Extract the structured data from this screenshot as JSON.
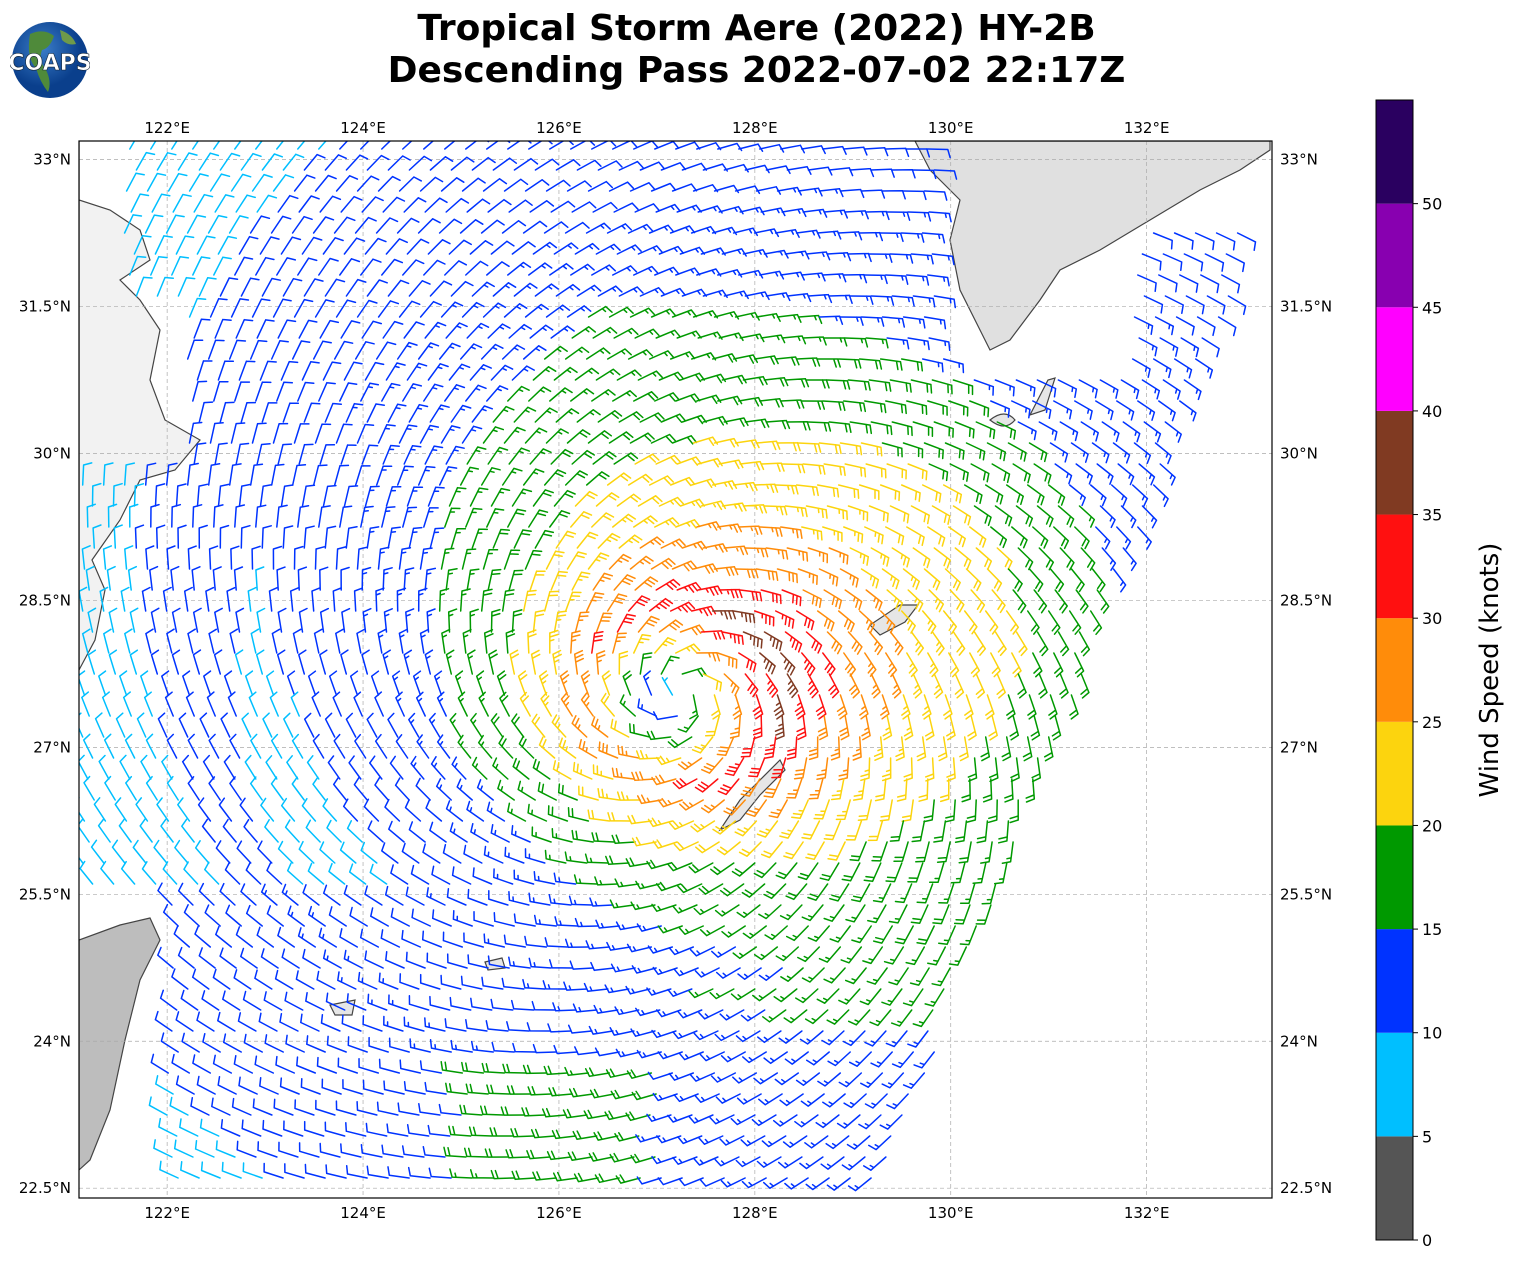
{
  "title": {
    "line1": "Tropical Storm Aere (2022) HY-2B",
    "line2": "Descending Pass 2022-07-02 22:17Z"
  },
  "logo": {
    "text": "COAPS"
  },
  "map": {
    "lon_ticks": [
      {
        "value": 122,
        "label": "122°E"
      },
      {
        "value": 124,
        "label": "124°E"
      },
      {
        "value": 126,
        "label": "126°E"
      },
      {
        "value": 128,
        "label": "128°E"
      },
      {
        "value": 130,
        "label": "130°E"
      },
      {
        "value": 132,
        "label": "132°E"
      }
    ],
    "lat_ticks": [
      {
        "value": 33,
        "label": "33°N"
      },
      {
        "value": 31.5,
        "label": "31.5°N"
      },
      {
        "value": 30,
        "label": "30°N"
      },
      {
        "value": 28.5,
        "label": "28.5°N"
      },
      {
        "value": 27,
        "label": "27°N"
      },
      {
        "value": 25.5,
        "label": "25.5°N"
      },
      {
        "value": 24,
        "label": "24°N"
      },
      {
        "value": 22.5,
        "label": "22.5°N"
      }
    ],
    "extent": {
      "lon_min": 121.1,
      "lon_max": 133.28,
      "lat_min": 22.4,
      "lat_max": 33.19
    },
    "storm": {
      "center_lon": 127.25,
      "center_lat": 27.55,
      "max_wind_kt": 33,
      "rmw_deg": 0.9
    }
  },
  "colorbar": {
    "label": "Wind Speed (knots)",
    "ticks": [
      "0",
      "5",
      "10",
      "15",
      "20",
      "25",
      "30",
      "35",
      "40",
      "45",
      "50"
    ],
    "levels": [
      0,
      5,
      10,
      15,
      20,
      25,
      30,
      35,
      40,
      45,
      50,
      55
    ],
    "colors": [
      "#555555",
      "#00bfff",
      "#0033ff",
      "#009900",
      "#fcd40e",
      "#ff8c0a",
      "#ff1010",
      "#803a22",
      "#ff00ff",
      "#8800b0",
      "#2a0060"
    ]
  }
}
